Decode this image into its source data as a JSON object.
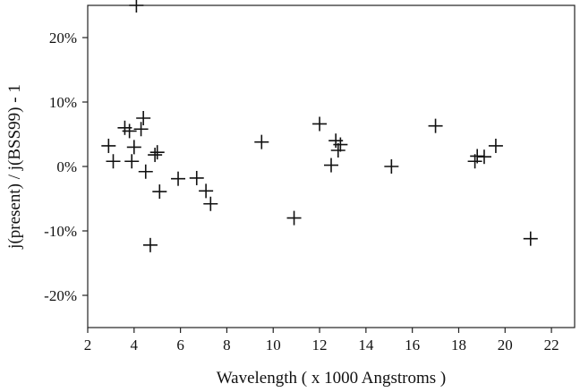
{
  "chart_data": {
    "type": "scatter",
    "marker": "plus",
    "xlabel": "Wavelength ( x 1000 Angstroms )",
    "ylabel": "j(present) / j(BSS99) - 1",
    "xlim": [
      2,
      23
    ],
    "ylim": [
      -25,
      25
    ],
    "x_ticks": [
      2,
      4,
      6,
      8,
      10,
      12,
      14,
      16,
      18,
      20,
      22
    ],
    "x_tick_labels": [
      "2",
      "4",
      "6",
      "8",
      "10",
      "12",
      "14",
      "16",
      "18",
      "20",
      "22"
    ],
    "y_ticks": [
      -20,
      -10,
      0,
      10,
      20
    ],
    "y_tick_labels": [
      "-20%",
      "-10%",
      "0%",
      "10%",
      "20%"
    ],
    "grid": false,
    "points": [
      {
        "x": 2.9,
        "y": 3.2
      },
      {
        "x": 3.1,
        "y": 0.8
      },
      {
        "x": 3.6,
        "y": 6.0
      },
      {
        "x": 3.8,
        "y": 5.5
      },
      {
        "x": 3.9,
        "y": 0.8
      },
      {
        "x": 4.0,
        "y": 3.0
      },
      {
        "x": 4.1,
        "y": 25.0
      },
      {
        "x": 4.3,
        "y": 5.8
      },
      {
        "x": 4.4,
        "y": 7.5
      },
      {
        "x": 4.5,
        "y": -0.8
      },
      {
        "x": 4.7,
        "y": -12.2
      },
      {
        "x": 4.9,
        "y": 1.8
      },
      {
        "x": 5.0,
        "y": 2.2
      },
      {
        "x": 5.1,
        "y": -3.9
      },
      {
        "x": 5.9,
        "y": -1.9
      },
      {
        "x": 6.7,
        "y": -1.8
      },
      {
        "x": 7.1,
        "y": -3.8
      },
      {
        "x": 7.3,
        "y": -5.8
      },
      {
        "x": 9.5,
        "y": 3.8
      },
      {
        "x": 10.9,
        "y": -8.0
      },
      {
        "x": 12.0,
        "y": 6.6
      },
      {
        "x": 12.5,
        "y": 0.2
      },
      {
        "x": 12.7,
        "y": 4.0
      },
      {
        "x": 12.8,
        "y": 2.5
      },
      {
        "x": 12.9,
        "y": 3.4
      },
      {
        "x": 15.1,
        "y": 0.0
      },
      {
        "x": 17.0,
        "y": 6.3
      },
      {
        "x": 18.7,
        "y": 0.8
      },
      {
        "x": 18.8,
        "y": 1.6
      },
      {
        "x": 19.1,
        "y": 1.5
      },
      {
        "x": 19.6,
        "y": 3.2
      },
      {
        "x": 21.1,
        "y": -11.2
      }
    ]
  }
}
